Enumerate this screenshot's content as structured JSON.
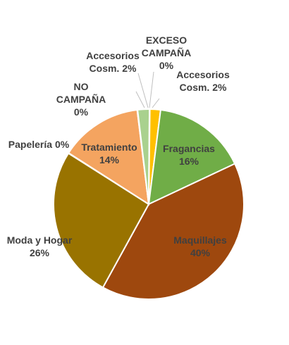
{
  "chart_data": {
    "type": "pie",
    "title": "",
    "categories": [
      "Accesorios Cosm.",
      "Fragancias",
      "Maquillajes",
      "Moda y Hogar",
      "Papelería",
      "Tratamiento",
      "NO CAMPAÑA",
      "Accesorios Cosm.",
      "EXCESO CAMPAÑA"
    ],
    "values": [
      2,
      16,
      40,
      26,
      0,
      14,
      0,
      2,
      0
    ],
    "colors": [
      "#ffc000",
      "#70ad47",
      "#9e480e",
      "#997300",
      "#a5a5a5",
      "#f4a460",
      "#7f7f7f",
      "#a9d18e",
      "#4472c4"
    ],
    "legend": "none",
    "data_labels": [
      {
        "lines": [
          "Accesorios",
          "Cosm. 2%"
        ]
      },
      {
        "lines": [
          "Fragancias",
          "16%"
        ]
      },
      {
        "lines": [
          "Maquillajes",
          "40%"
        ]
      },
      {
        "lines": [
          "Moda y Hogar",
          "26%"
        ]
      },
      {
        "lines": [
          "Papelería 0%"
        ]
      },
      {
        "lines": [
          "Tratamiento",
          "14%"
        ]
      },
      {
        "lines": [
          "NO",
          "CAMPAÑA",
          "0%"
        ]
      },
      {
        "lines": [
          "Accesorios",
          "Cosm. 2%"
        ]
      },
      {
        "lines": [
          "EXCESO",
          "CAMPAÑA",
          "0%"
        ]
      }
    ]
  }
}
